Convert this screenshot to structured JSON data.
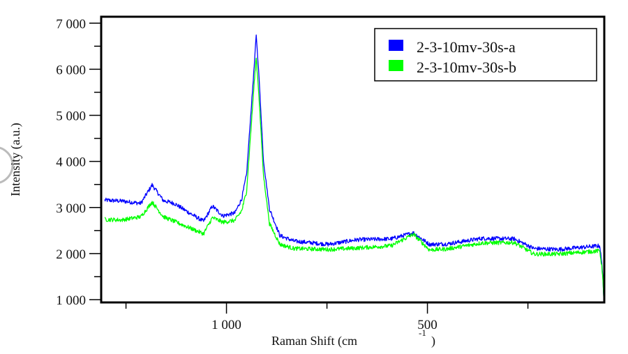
{
  "chart_data": {
    "type": "line",
    "title": "",
    "xlabel": "Raman Shift (cm",
    "xlabel_superscript": "-1",
    "xlabel_suffix": ")",
    "ylabel": "Intensity (a.u.)",
    "xlim": [
      1310,
      60
    ],
    "x_reversed": true,
    "ylim": [
      940,
      7140
    ],
    "grid": false,
    "legend_position": "top-right",
    "x_ticks_major": [
      1000,
      500
    ],
    "x_tick_labels": [
      "1 000",
      "500"
    ],
    "x_ticks_minor": [
      1250,
      750,
      250
    ],
    "y_ticks_major": [
      1000,
      2000,
      3000,
      4000,
      5000,
      6000,
      7000
    ],
    "y_tick_labels": [
      "1 000",
      "2 000",
      "3 000",
      "4 000",
      "5 000",
      "6 000",
      "7 000"
    ],
    "y_ticks_minor": [
      1500,
      2500,
      3500,
      4500,
      5500,
      6500
    ],
    "series": [
      {
        "name": "2-3-10mv-30s-a",
        "color": "#0000ff",
        "noise": 45,
        "points": [
          [
            1303,
            3160
          ],
          [
            1260,
            3140
          ],
          [
            1213,
            3090
          ],
          [
            1185,
            3490
          ],
          [
            1157,
            3150
          ],
          [
            1130,
            3090
          ],
          [
            1092,
            2880
          ],
          [
            1057,
            2700
          ],
          [
            1035,
            3030
          ],
          [
            1009,
            2820
          ],
          [
            979,
            2880
          ],
          [
            962,
            3190
          ],
          [
            950,
            3720
          ],
          [
            939,
            5080
          ],
          [
            931,
            6060
          ],
          [
            926,
            6750
          ],
          [
            919,
            5840
          ],
          [
            908,
            4020
          ],
          [
            893,
            2970
          ],
          [
            867,
            2390
          ],
          [
            832,
            2270
          ],
          [
            746,
            2200
          ],
          [
            676,
            2300
          ],
          [
            590,
            2320
          ],
          [
            535,
            2450
          ],
          [
            495,
            2200
          ],
          [
            451,
            2210
          ],
          [
            365,
            2330
          ],
          [
            284,
            2320
          ],
          [
            235,
            2110
          ],
          [
            175,
            2090
          ],
          [
            71,
            2170
          ],
          [
            64,
            1580
          ],
          [
            61,
            1000
          ]
        ]
      },
      {
        "name": "2-3-10mv-30s-b",
        "color": "#00ff00",
        "noise": 45,
        "points": [
          [
            1303,
            2740
          ],
          [
            1260,
            2730
          ],
          [
            1213,
            2800
          ],
          [
            1185,
            3120
          ],
          [
            1157,
            2800
          ],
          [
            1130,
            2700
          ],
          [
            1092,
            2560
          ],
          [
            1057,
            2430
          ],
          [
            1035,
            2780
          ],
          [
            1009,
            2680
          ],
          [
            979,
            2720
          ],
          [
            962,
            2930
          ],
          [
            950,
            3350
          ],
          [
            939,
            4700
          ],
          [
            931,
            5700
          ],
          [
            926,
            6250
          ],
          [
            919,
            5400
          ],
          [
            908,
            3700
          ],
          [
            893,
            2650
          ],
          [
            867,
            2200
          ],
          [
            832,
            2110
          ],
          [
            746,
            2090
          ],
          [
            676,
            2120
          ],
          [
            590,
            2170
          ],
          [
            535,
            2420
          ],
          [
            495,
            2080
          ],
          [
            451,
            2100
          ],
          [
            365,
            2230
          ],
          [
            284,
            2240
          ],
          [
            235,
            1990
          ],
          [
            175,
            1990
          ],
          [
            71,
            2060
          ],
          [
            64,
            1550
          ],
          [
            61,
            960
          ]
        ]
      }
    ]
  }
}
